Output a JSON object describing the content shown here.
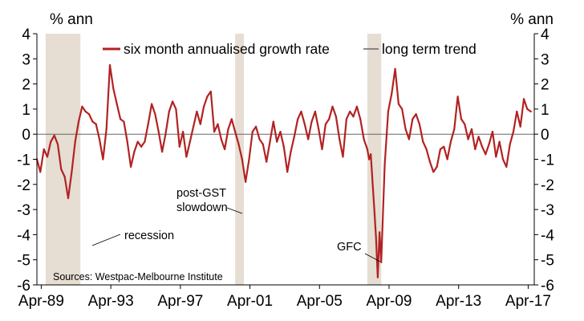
{
  "chart_data": {
    "type": "line",
    "left_unit_label": "% ann",
    "right_unit_label": "% ann",
    "ylim": [
      -6,
      4
    ],
    "yticks": [
      "4",
      "3",
      "2",
      "1",
      "0",
      "-1",
      "-2",
      "-3",
      "-4",
      "-5",
      "-6"
    ],
    "x_tick_labels": [
      "Apr-89",
      "Apr-93",
      "Apr-97",
      "Apr-01",
      "Apr-05",
      "Apr-09",
      "Apr-13",
      "Apr-17"
    ],
    "xlim": [
      1989.0,
      2017.6
    ],
    "legend": [
      "six month annualised growth rate",
      "long term trend"
    ],
    "long_term_trend": 0,
    "colors": {
      "series": "#B22222",
      "trend": "#666666",
      "shade": "#E6DDD3"
    },
    "shaded_periods": [
      {
        "start": 1989.5,
        "end": 1991.5
      },
      {
        "start": 2000.4,
        "end": 2000.9
      },
      {
        "start": 2008.0,
        "end": 2008.8
      }
    ],
    "annotations": [
      {
        "text": "recession"
      },
      {
        "text": "post-GST"
      },
      {
        "text": "slowdown"
      },
      {
        "text": "GFC"
      }
    ],
    "source": "Sources: Westpac-Melbourne Institute",
    "series": [
      {
        "name": "six month annualised growth rate",
        "x": [
          1989.0,
          1989.2,
          1989.4,
          1989.6,
          1989.8,
          1990.0,
          1990.2,
          1990.4,
          1990.6,
          1990.8,
          1991.0,
          1991.2,
          1991.4,
          1991.6,
          1991.8,
          1992.0,
          1992.2,
          1992.4,
          1992.6,
          1992.8,
          1993.0,
          1993.2,
          1993.4,
          1993.6,
          1993.8,
          1994.0,
          1994.2,
          1994.4,
          1994.6,
          1994.8,
          1995.0,
          1995.2,
          1995.4,
          1995.6,
          1995.8,
          1996.0,
          1996.2,
          1996.4,
          1996.6,
          1996.8,
          1997.0,
          1997.2,
          1997.4,
          1997.6,
          1997.8,
          1998.0,
          1998.2,
          1998.4,
          1998.6,
          1998.8,
          1999.0,
          1999.2,
          1999.4,
          1999.6,
          1999.8,
          2000.0,
          2000.2,
          2000.4,
          2000.6,
          2000.8,
          2001.0,
          2001.2,
          2001.4,
          2001.6,
          2001.8,
          2002.0,
          2002.2,
          2002.4,
          2002.6,
          2002.8,
          2003.0,
          2003.2,
          2003.4,
          2003.6,
          2003.8,
          2004.0,
          2004.2,
          2004.4,
          2004.6,
          2004.8,
          2005.0,
          2005.2,
          2005.4,
          2005.6,
          2005.8,
          2006.0,
          2006.2,
          2006.4,
          2006.6,
          2006.8,
          2007.0,
          2007.2,
          2007.4,
          2007.6,
          2007.8,
          2008.0,
          2008.1,
          2008.2,
          2008.3,
          2008.4,
          2008.5,
          2008.6,
          2008.7,
          2008.8,
          2009.0,
          2009.2,
          2009.4,
          2009.6,
          2009.8,
          2010.0,
          2010.2,
          2010.4,
          2010.6,
          2010.8,
          2011.0,
          2011.2,
          2011.4,
          2011.6,
          2011.8,
          2012.0,
          2012.2,
          2012.4,
          2012.6,
          2012.8,
          2013.0,
          2013.2,
          2013.4,
          2013.6,
          2013.8,
          2014.0,
          2014.2,
          2014.4,
          2014.6,
          2014.8,
          2015.0,
          2015.2,
          2015.4,
          2015.6,
          2015.8,
          2016.0,
          2016.2,
          2016.4,
          2016.6,
          2016.8,
          2017.0,
          2017.2,
          2017.4
        ],
        "values": [
          -1.0,
          -1.5,
          -0.6,
          -0.9,
          -0.3,
          -0.05,
          -0.4,
          -1.4,
          -1.7,
          -2.55,
          -1.5,
          -0.3,
          0.5,
          1.1,
          0.9,
          0.8,
          0.5,
          0.4,
          -0.2,
          -1.0,
          0.2,
          2.75,
          1.8,
          1.2,
          0.6,
          0.5,
          -0.3,
          -1.3,
          -0.7,
          -0.3,
          -0.5,
          -0.3,
          0.4,
          1.2,
          0.8,
          0.1,
          -0.7,
          0.0,
          0.9,
          1.3,
          1.0,
          -0.5,
          0.1,
          -0.9,
          -0.3,
          0.3,
          0.9,
          0.4,
          1.1,
          1.5,
          1.7,
          0.1,
          0.4,
          -0.2,
          -0.6,
          0.2,
          0.6,
          0.1,
          -0.4,
          -1.0,
          -1.9,
          -1.0,
          0.1,
          0.3,
          -0.2,
          -0.4,
          -1.1,
          -0.3,
          0.5,
          -0.3,
          0.1,
          -0.5,
          -1.5,
          -0.7,
          -0.1,
          0.6,
          0.9,
          0.4,
          -0.2,
          0.5,
          0.9,
          0.2,
          -0.6,
          0.4,
          0.6,
          1.1,
          0.7,
          -0.2,
          -0.9,
          0.6,
          0.9,
          0.7,
          1.1,
          0.6,
          -0.2,
          -0.6,
          -1.0,
          -0.8,
          -1.9,
          -3.0,
          -4.1,
          -5.7,
          -3.9,
          -5.1,
          -1.2,
          0.9,
          1.6,
          2.6,
          1.2,
          1.0,
          0.2,
          -0.2,
          0.6,
          0.8,
          0.4,
          -0.3,
          -0.6,
          -1.1,
          -1.5,
          -1.3,
          -0.6,
          -0.5,
          -1.0,
          -0.3,
          0.2,
          1.5,
          0.6,
          0.4,
          -0.2,
          0.2,
          -0.6,
          -0.1,
          -0.5,
          -0.8,
          -0.4,
          0.1,
          -0.9,
          -0.3,
          -1.0,
          -1.3,
          -0.4,
          0.1,
          0.9,
          0.3,
          1.4,
          1.0,
          0.9
        ]
      }
    ]
  }
}
